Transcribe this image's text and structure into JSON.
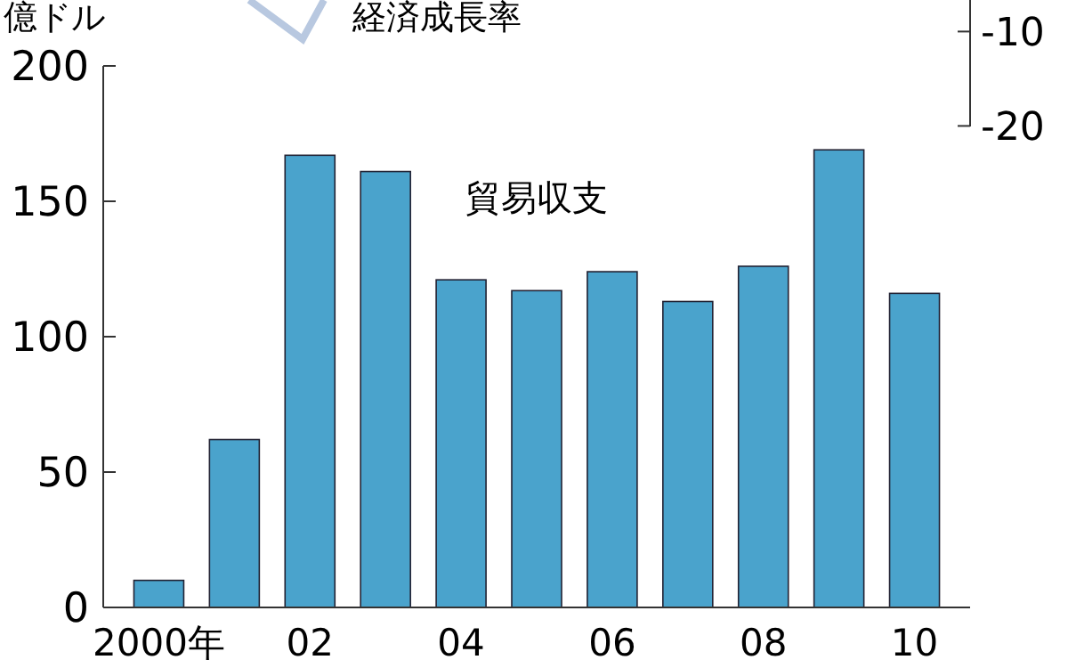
{
  "chart_data": {
    "type": "bar",
    "ylabel": "億ドル",
    "categories": [
      "2000年",
      null,
      "02",
      null,
      "04",
      null,
      "06",
      null,
      "08",
      null,
      "10"
    ],
    "series": [
      {
        "name": "貿易収支",
        "color": "#4aa3cc",
        "values": [
          10,
          62,
          167,
          161,
          121,
          117,
          124,
          113,
          126,
          169,
          116
        ]
      }
    ],
    "ylim": [
      0,
      200
    ],
    "yticks": [
      0,
      50,
      100,
      150,
      200
    ],
    "y2label": "経済成長率",
    "annotations": [
      "-10",
      "-20"
    ],
    "grid": false,
    "legend": false
  }
}
